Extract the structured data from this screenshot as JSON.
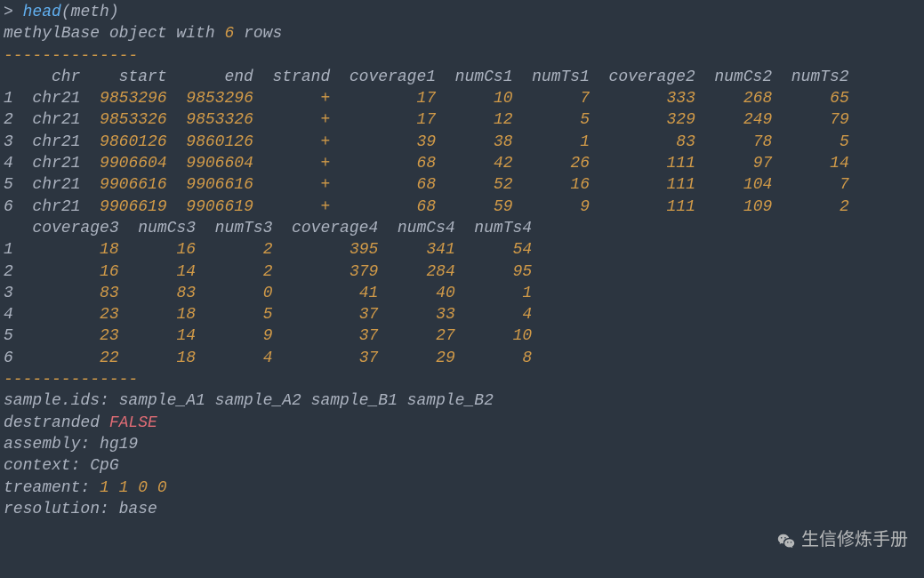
{
  "command": {
    "prompt": ">",
    "fn": "head",
    "arg": "meth"
  },
  "header_line": {
    "pre": "methylBase object with ",
    "n": "6",
    "post": " rows"
  },
  "dash": "--------------",
  "table1": {
    "headers": [
      "chr",
      "start",
      "end",
      "strand",
      "coverage1",
      "numCs1",
      "numTs1",
      "coverage2",
      "numCs2",
      "numTs2"
    ],
    "widths": [
      6,
      8,
      8,
      7,
      10,
      7,
      7,
      10,
      7,
      7
    ],
    "rows": [
      {
        "i": "1",
        "v": [
          "chr21",
          "9853296",
          "9853296",
          "+",
          "17",
          "10",
          "7",
          "333",
          "268",
          "65"
        ]
      },
      {
        "i": "2",
        "v": [
          "chr21",
          "9853326",
          "9853326",
          "+",
          "17",
          "12",
          "5",
          "329",
          "249",
          "79"
        ]
      },
      {
        "i": "3",
        "v": [
          "chr21",
          "9860126",
          "9860126",
          "+",
          "39",
          "38",
          "1",
          "83",
          "78",
          "5"
        ]
      },
      {
        "i": "4",
        "v": [
          "chr21",
          "9906604",
          "9906604",
          "+",
          "68",
          "42",
          "26",
          "111",
          "97",
          "14"
        ]
      },
      {
        "i": "5",
        "v": [
          "chr21",
          "9906616",
          "9906616",
          "+",
          "68",
          "52",
          "16",
          "111",
          "104",
          "7"
        ]
      },
      {
        "i": "6",
        "v": [
          "chr21",
          "9906619",
          "9906619",
          "+",
          "68",
          "59",
          "9",
          "111",
          "109",
          "2"
        ]
      }
    ]
  },
  "table2": {
    "headers": [
      "coverage3",
      "numCs3",
      "numTs3",
      "coverage4",
      "numCs4",
      "numTs4"
    ],
    "widths": [
      10,
      7,
      7,
      10,
      7,
      7
    ],
    "rows": [
      {
        "i": "1",
        "v": [
          "18",
          "16",
          "2",
          "395",
          "341",
          "54"
        ]
      },
      {
        "i": "2",
        "v": [
          "16",
          "14",
          "2",
          "379",
          "284",
          "95"
        ]
      },
      {
        "i": "3",
        "v": [
          "83",
          "83",
          "0",
          "41",
          "40",
          "1"
        ]
      },
      {
        "i": "4",
        "v": [
          "23",
          "18",
          "5",
          "37",
          "33",
          "4"
        ]
      },
      {
        "i": "5",
        "v": [
          "23",
          "14",
          "9",
          "37",
          "27",
          "10"
        ]
      },
      {
        "i": "6",
        "v": [
          "22",
          "18",
          "4",
          "37",
          "29",
          "8"
        ]
      }
    ]
  },
  "meta": {
    "sample_ids": {
      "label": "sample.ids:",
      "vals": [
        "sample_A1",
        "sample_A2",
        "sample_B1",
        "sample_B2"
      ]
    },
    "destranded": {
      "label": "destranded",
      "val": "FALSE"
    },
    "assembly": {
      "label": "assembly:",
      "val": "hg19"
    },
    "context": {
      "label": "context:",
      "val": "CpG"
    },
    "treatment": {
      "label": "treament:",
      "vals": [
        "1",
        "1",
        "0",
        "0"
      ]
    },
    "resolution": {
      "label": "resolution:",
      "val": "base"
    }
  },
  "watermark": "生信修炼手册",
  "colors": {
    "bg": "#2c3540",
    "text": "#abb2bf",
    "fn": "#61afef",
    "num": "#d19a48",
    "false": "#e06c75"
  }
}
